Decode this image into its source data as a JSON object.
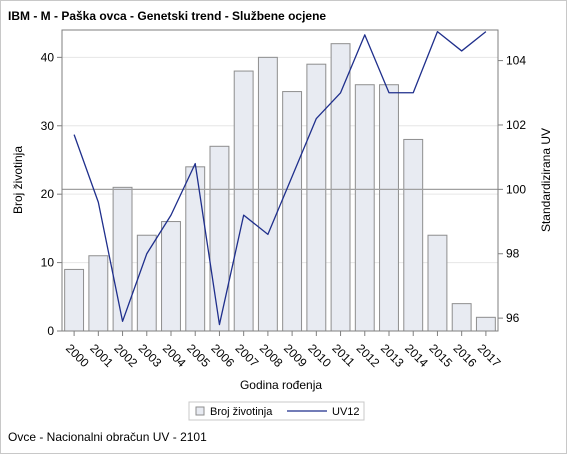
{
  "title": "IBM - M - Paška ovca - Genetski trend - Službene ocjene",
  "footnote": "Ovce - Nacionalni obračun UV - 2101",
  "colors": {
    "bar_fill": "#e8ebf2",
    "bar_stroke": "#8e8e8e",
    "line": "#1f2f8c",
    "reference_line": "#a0a0a0",
    "axis": "#7f7f7f",
    "grid": "#e6e6e6"
  },
  "chart_data": {
    "type": "bar",
    "title": "IBM - M - Paška ovca - Genetski trend - Službene ocjene",
    "xlabel": "Godina rođenja",
    "ylabel": "Broj životinja",
    "y2label": "Standardizirana UV",
    "categories": [
      "2000",
      "2001",
      "2002",
      "2003",
      "2004",
      "2005",
      "2006",
      "2007",
      "2008",
      "2009",
      "2010",
      "2011",
      "2012",
      "2013",
      "2014",
      "2015",
      "2016",
      "2017"
    ],
    "series": [
      {
        "name": "Broj životinja",
        "type": "bar",
        "axis": "left",
        "values": [
          9,
          11,
          21,
          14,
          16,
          24,
          27,
          38,
          40,
          35,
          39,
          42,
          36,
          36,
          28,
          14,
          4,
          2
        ]
      },
      {
        "name": "UV12",
        "type": "line",
        "axis": "right",
        "values": [
          101.7,
          99.6,
          95.9,
          98.0,
          99.2,
          100.8,
          95.8,
          99.2,
          98.6,
          100.4,
          102.2,
          103.0,
          104.8,
          103.0,
          103.0,
          104.9,
          104.3,
          104.9
        ]
      }
    ],
    "ylim": [
      0,
      44
    ],
    "yticks": [
      0,
      10,
      20,
      30,
      40
    ],
    "y2lim": [
      95.6,
      104.95
    ],
    "y2ticks": [
      96,
      98,
      100,
      102,
      104
    ],
    "reference_line_y2": 100,
    "grid": true,
    "legend_position": "bottom"
  }
}
